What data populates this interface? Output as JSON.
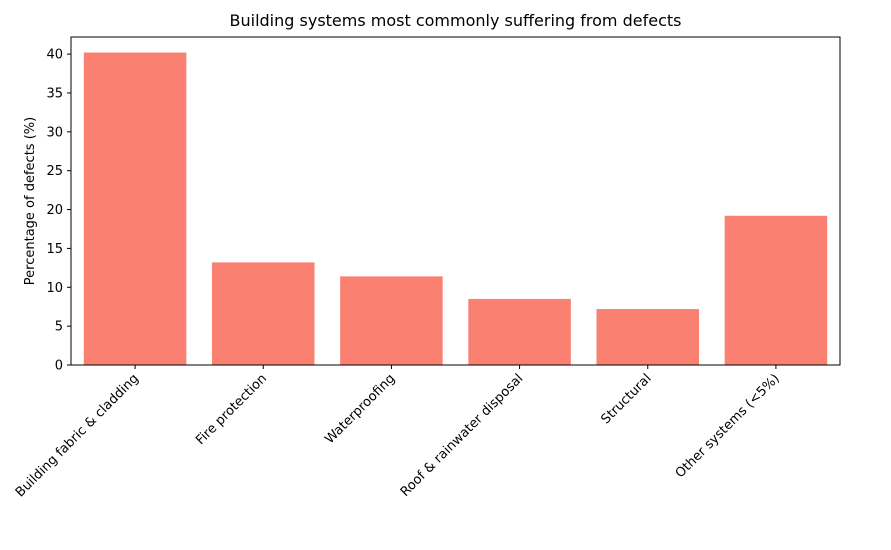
{
  "chart_data": {
    "type": "bar",
    "title": "Building systems most commonly suffering from defects",
    "xlabel": "",
    "ylabel": "Percentage of defects (%)",
    "categories": [
      "Building fabric & cladding",
      "Fire protection",
      "Waterproofing",
      "Roof & rainwater disposal",
      "Structural",
      "Other systems (<5%)"
    ],
    "values": [
      40.2,
      13.2,
      11.4,
      8.5,
      7.2,
      19.2
    ],
    "ylim": [
      0,
      42.2
    ],
    "yticks": [
      0,
      5,
      10,
      15,
      20,
      25,
      30,
      35,
      40
    ],
    "bar_color": "#fa8072",
    "grid": false,
    "legend": "none"
  }
}
